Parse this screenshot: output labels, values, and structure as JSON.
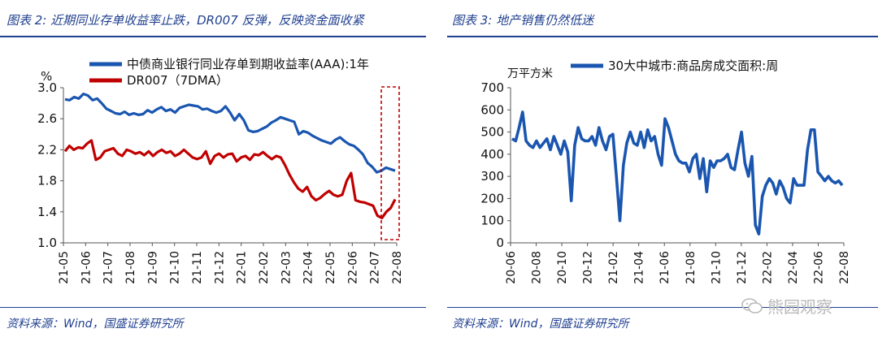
{
  "left": {
    "title": "图表 2:  近期同业存单收益率止跌，DR007 反弹，反映资金面收紧",
    "source": "资料来源：Wind，国盛证券研究所",
    "chart_data": {
      "type": "line",
      "unit_label": "%",
      "ylim": [
        1.0,
        3.0
      ],
      "yticks": [
        "1.0",
        "1.4",
        "1.8",
        "2.2",
        "2.6",
        "3.0"
      ],
      "x_tick_labels": [
        "21-05",
        "21-06",
        "21-07",
        "21-08",
        "21-09",
        "21-10",
        "21-11",
        "21-12",
        "22-01",
        "22-02",
        "22-03",
        "22-04",
        "22-05",
        "22-06",
        "22-07",
        "22-08"
      ],
      "series": [
        {
          "name": "中债商业银行同业存单到期收益率(AAA):1年",
          "color": "#1a56b0",
          "values": [
            2.85,
            2.84,
            2.88,
            2.86,
            2.92,
            2.9,
            2.84,
            2.86,
            2.8,
            2.73,
            2.7,
            2.67,
            2.66,
            2.69,
            2.65,
            2.67,
            2.65,
            2.66,
            2.71,
            2.68,
            2.72,
            2.75,
            2.7,
            2.72,
            2.68,
            2.74,
            2.76,
            2.78,
            2.77,
            2.76,
            2.72,
            2.73,
            2.7,
            2.68,
            2.7,
            2.76,
            2.68,
            2.58,
            2.66,
            2.58,
            2.45,
            2.43,
            2.44,
            2.47,
            2.5,
            2.55,
            2.58,
            2.62,
            2.6,
            2.58,
            2.56,
            2.4,
            2.44,
            2.42,
            2.38,
            2.35,
            2.32,
            2.3,
            2.28,
            2.33,
            2.36,
            2.31,
            2.27,
            2.25,
            2.2,
            2.14,
            2.03,
            1.98,
            1.91,
            1.93,
            1.97,
            1.95,
            1.93
          ]
        },
        {
          "name": "DR007（7DMA）",
          "color": "#c00000",
          "values": [
            2.18,
            2.25,
            2.2,
            2.23,
            2.22,
            2.28,
            2.32,
            2.07,
            2.1,
            2.18,
            2.2,
            2.22,
            2.15,
            2.12,
            2.2,
            2.18,
            2.15,
            2.17,
            2.13,
            2.18,
            2.12,
            2.17,
            2.2,
            2.16,
            2.18,
            2.12,
            2.15,
            2.2,
            2.15,
            2.1,
            2.08,
            2.1,
            2.18,
            2.02,
            2.12,
            2.15,
            2.1,
            2.14,
            2.15,
            2.05,
            2.1,
            2.12,
            2.07,
            2.14,
            2.13,
            2.17,
            2.12,
            2.08,
            2.12,
            2.1,
            2.0,
            1.88,
            1.78,
            1.7,
            1.66,
            1.72,
            1.6,
            1.55,
            1.58,
            1.63,
            1.67,
            1.62,
            1.6,
            1.62,
            1.8,
            1.9,
            1.55,
            1.53,
            1.52,
            1.5,
            1.48,
            1.35,
            1.32,
            1.4,
            1.45,
            1.56
          ]
        }
      ]
    }
  },
  "right": {
    "title": "图表 3:  地产销售仍然低迷",
    "source": "资料来源：Wind，国盛证券研究所",
    "chart_data": {
      "type": "line",
      "unit_label": "万平方米",
      "ylim": [
        0,
        700
      ],
      "yticks": [
        "0",
        "100",
        "200",
        "300",
        "400",
        "500",
        "600",
        "700"
      ],
      "x_tick_labels": [
        "20-06",
        "20-08",
        "20-10",
        "20-12",
        "21-02",
        "21-04",
        "21-06",
        "21-08",
        "21-10",
        "21-12",
        "22-02",
        "22-04",
        "22-06",
        "22-08"
      ],
      "series": [
        {
          "name": "30大中城市:商品房成交面积:周",
          "color": "#1a56b0",
          "values": [
            470,
            460,
            520,
            590,
            460,
            440,
            430,
            460,
            430,
            450,
            470,
            420,
            480,
            440,
            400,
            460,
            410,
            190,
            440,
            520,
            470,
            460,
            460,
            480,
            440,
            520,
            460,
            420,
            480,
            490,
            300,
            100,
            350,
            450,
            500,
            450,
            440,
            500,
            430,
            510,
            460,
            480,
            400,
            350,
            560,
            520,
            460,
            400,
            370,
            360,
            360,
            320,
            380,
            400,
            290,
            380,
            230,
            370,
            340,
            370,
            370,
            380,
            400,
            340,
            330,
            420,
            500,
            360,
            300,
            390,
            80,
            40,
            210,
            260,
            290,
            270,
            220,
            280,
            250,
            200,
            180,
            290,
            260,
            260,
            260,
            420,
            510,
            510,
            320,
            300,
            280,
            300,
            280,
            270,
            280,
            260
          ]
        }
      ]
    }
  },
  "watermark": "熊园观察"
}
